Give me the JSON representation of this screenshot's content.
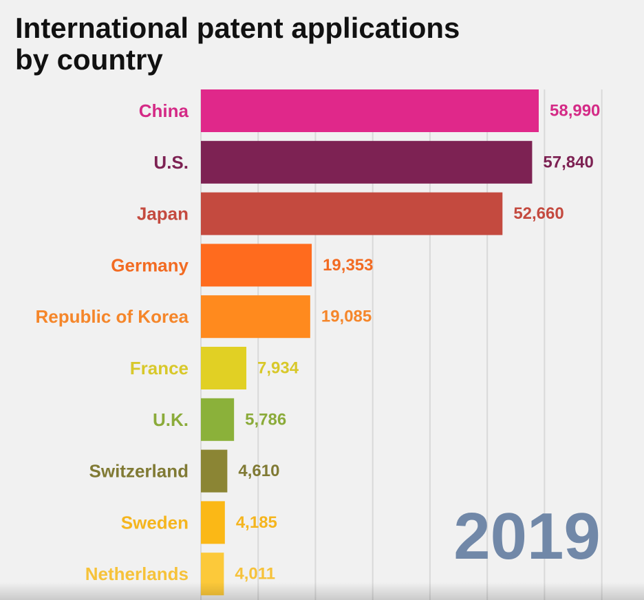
{
  "title": {
    "line1": "International patent applications",
    "line2": "by country"
  },
  "year": "2019",
  "chart_data": {
    "type": "bar",
    "orientation": "horizontal",
    "title": "International patent applications by country",
    "xlabel": "",
    "ylabel": "",
    "grid": true,
    "xlim": [
      0,
      70000
    ],
    "gridline_step": 10000,
    "categories": [
      "China",
      "U.S.",
      "Japan",
      "Germany",
      "Republic of Korea",
      "France",
      "U.K.",
      "Switzerland",
      "Sweden",
      "Netherlands"
    ],
    "values": [
      58990,
      57840,
      52660,
      19353,
      19085,
      7934,
      5786,
      4610,
      4185,
      4011
    ],
    "value_labels": [
      "58,990",
      "57,840",
      "52,660",
      "19,353",
      "19,085",
      "7,934",
      "5,786",
      "4,610",
      "4,185",
      "4,011"
    ],
    "colors": [
      "#e0288a",
      "#7d2253",
      "#c44a3f",
      "#ff6b1e",
      "#ff8a1e",
      "#e1d024",
      "#8bb13a",
      "#8b8534",
      "#fbb816",
      "#fcc93a"
    ],
    "label_colors": [
      "#d42a86",
      "#7d2253",
      "#c44a3f",
      "#f26b22",
      "#f5862a",
      "#d8c82a",
      "#8bab3a",
      "#807a34",
      "#f5b51e",
      "#f6c23a"
    ],
    "year_color": "#7188a8"
  }
}
